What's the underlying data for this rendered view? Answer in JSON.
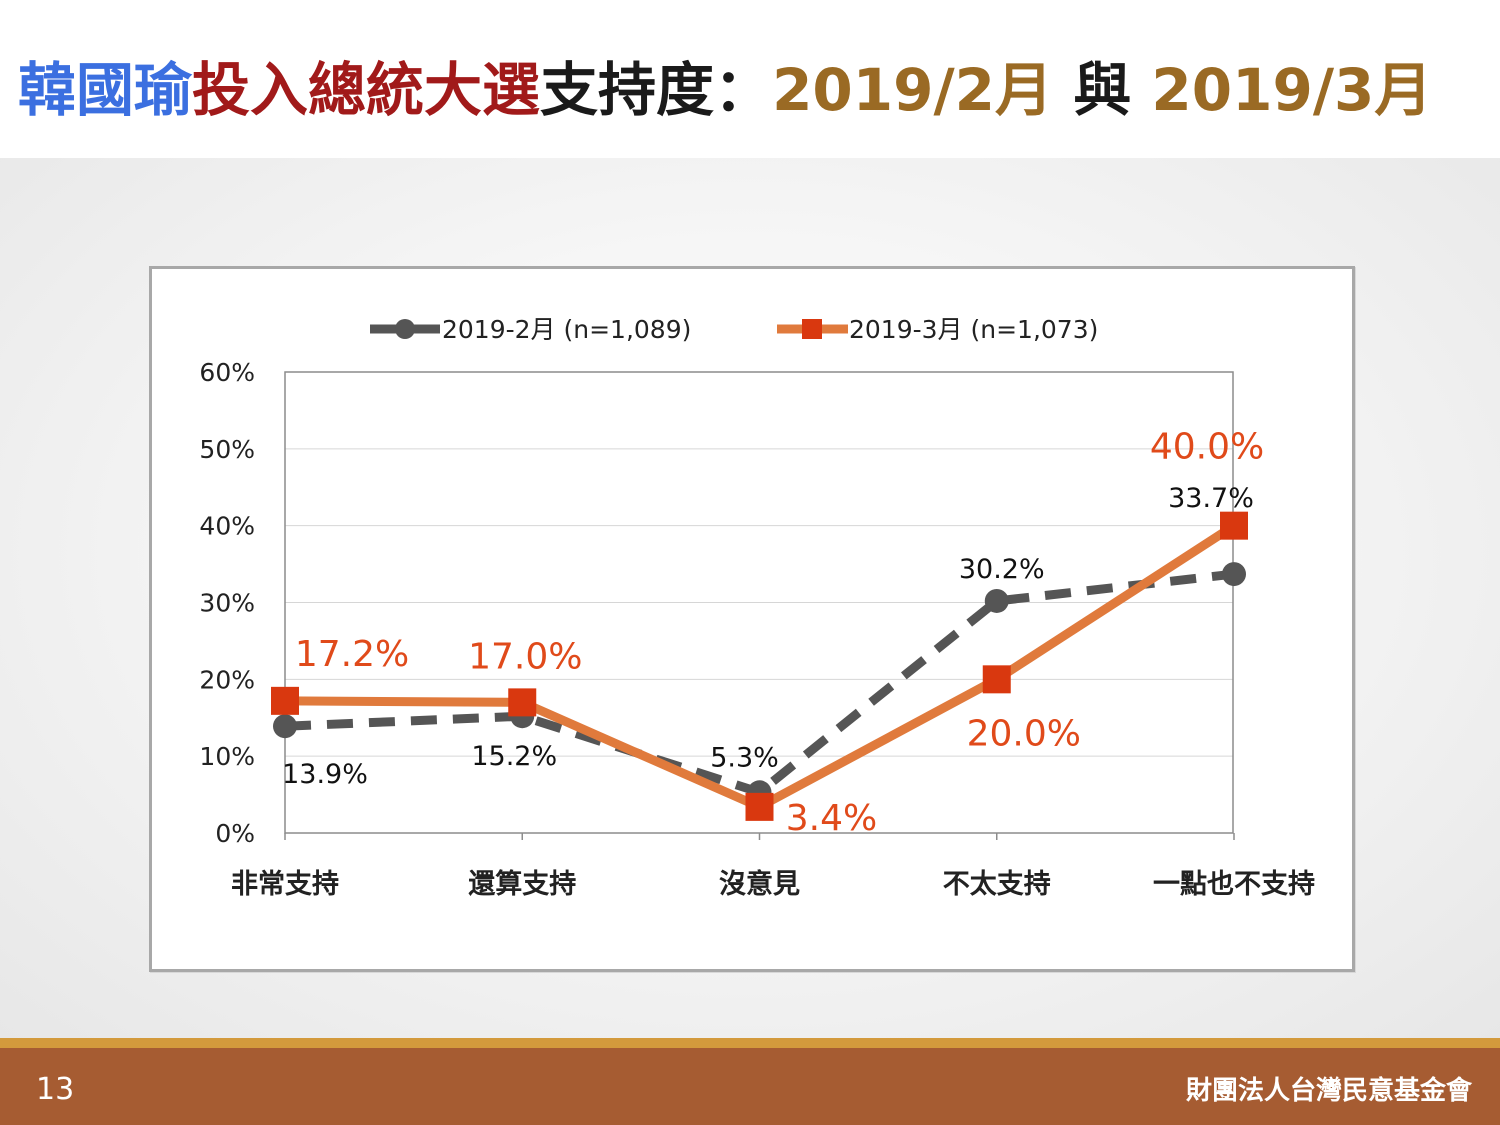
{
  "title": {
    "name": "韓國瑜",
    "event": "投入總統大選",
    "metric": "支持度",
    "colon": "：",
    "period1": "2019/2月",
    "conj": " 與 ",
    "period2": "2019/3月",
    "colors": {
      "name": "#3b6fe0",
      "event": "#a11a1a",
      "metric": "#1a1a1a",
      "period": "#9a6a24"
    }
  },
  "chart_data": {
    "type": "line",
    "categories": [
      "非常支持",
      "還算支持",
      "沒意見",
      "不太支持",
      "一點也不支持"
    ],
    "y_ticks": [
      "60%",
      "50%",
      "40%",
      "30%",
      "20%",
      "10%",
      "0%"
    ],
    "ylim": [
      0,
      60
    ],
    "grid": true,
    "legend_position": "top",
    "series": [
      {
        "name": "2019-2月 (n=1,089)",
        "values": [
          13.9,
          15.2,
          5.3,
          30.2,
          33.7
        ],
        "labels": [
          "13.9%",
          "15.2%",
          "5.3%",
          "30.2%",
          "33.7%"
        ],
        "color": "#555555",
        "style": "dashed",
        "marker": "circle"
      },
      {
        "name": "2019-3月 (n=1,073)",
        "values": [
          17.2,
          17.0,
          3.4,
          20.0,
          40.0
        ],
        "labels": [
          "17.2%",
          "17.0%",
          "3.4%",
          "20.0%",
          "40.0%"
        ],
        "color": "#e07a3c",
        "marker_color": "#d9380f",
        "label_color": "#e04a1a",
        "style": "solid",
        "marker": "square"
      }
    ]
  },
  "footer": {
    "page_number": "13",
    "organization": "財團法人台灣民意基金會"
  }
}
